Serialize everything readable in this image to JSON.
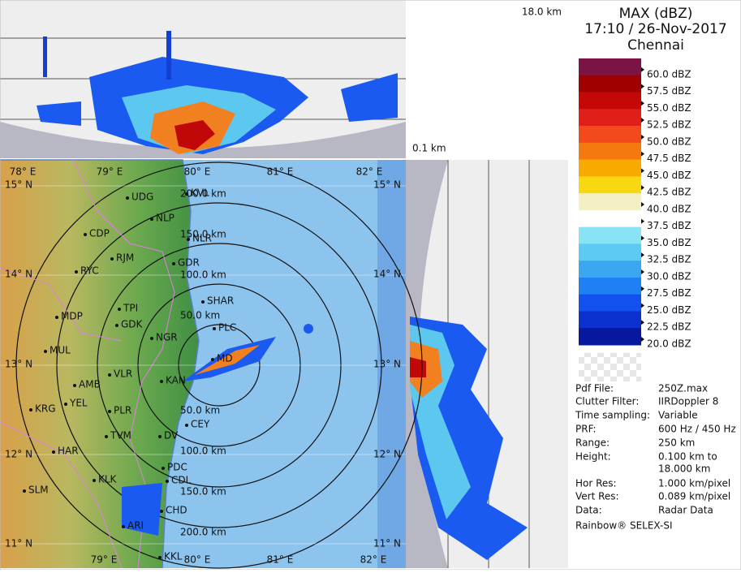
{
  "header": {
    "product": "MAX (dBZ)",
    "datetime": "17:10 / 26-Nov-2017",
    "station": "Chennai"
  },
  "top_height_label": "18.0 km",
  "bottom_height_label": "0.1 km",
  "legend": [
    {
      "label": "60.0 dBZ",
      "color": "#7b1444"
    },
    {
      "label": "57.5 dBZ",
      "color": "#a00000"
    },
    {
      "label": "55.0 dBZ",
      "color": "#c40808"
    },
    {
      "label": "52.5 dBZ",
      "color": "#e02018"
    },
    {
      "label": "50.0 dBZ",
      "color": "#f24a1c"
    },
    {
      "label": "47.5 dBZ",
      "color": "#f47a10"
    },
    {
      "label": "45.0 dBZ",
      "color": "#f8aa00"
    },
    {
      "label": "42.5 dBZ",
      "color": "#f8d810"
    },
    {
      "label": "40.0 dBZ",
      "color": "#f2f0c4"
    },
    {
      "label": "37.5 dBZ",
      "color": "#ffffff"
    },
    {
      "label": "35.0 dBZ",
      "color": "#88e4f4"
    },
    {
      "label": "32.5 dBZ",
      "color": "#5ccaf2"
    },
    {
      "label": "30.0 dBZ",
      "color": "#3aa8f0"
    },
    {
      "label": "27.5 dBZ",
      "color": "#1e80f2"
    },
    {
      "label": "25.0 dBZ",
      "color": "#1250f0"
    },
    {
      "label": "22.5 dBZ",
      "color": "#0c30d0"
    },
    {
      "label": "20.0 dBZ",
      "color": "#08189e"
    }
  ],
  "info": [
    {
      "key": "Pdf File:",
      "value": "250Z.max"
    },
    {
      "key": "Clutter Filter:",
      "value": "IIRDoppler 8"
    },
    {
      "key": "Time sampling:",
      "value": "Variable"
    },
    {
      "key": "PRF:",
      "value": "600 Hz / 450 Hz"
    },
    {
      "key": "Range:",
      "value": "250 km"
    },
    {
      "key": "Height:",
      "value": "0.100 km to"
    },
    {
      "key": "",
      "value": "18.000 km"
    },
    {
      "key": "Hor Res:",
      "value": "1.000 km/pixel"
    },
    {
      "key": "Vert Res:",
      "value": "0.089 km/pixel"
    },
    {
      "key": "Data:",
      "value": "Radar Data"
    }
  ],
  "footer": "Rainbow® SELEX-SI",
  "longitudes_top": [
    "78° E",
    "79° E",
    "80° E",
    "81° E",
    "82° E"
  ],
  "longitudes_bottom": [
    "79° E",
    "80° E",
    "81° E",
    "82° E"
  ],
  "latitudes_left": [
    "15° N",
    "14° N",
    "13° N",
    "12° N",
    "11° N"
  ],
  "latitudes_right": [
    "15° N",
    "14° N",
    "13° N",
    "12° N",
    "11° N"
  ],
  "range_labels": [
    "200.0 km",
    "150.0 km",
    "100.0 km",
    "50.0 km",
    "50.0 km",
    "100.0 km",
    "150.0 km",
    "200.0 km"
  ],
  "cities": [
    "UDG",
    "KVL",
    "NLP",
    "CDP",
    "NLR",
    "RJM",
    "GDR",
    "RYC",
    "SHAR",
    "TPI",
    "MDP",
    "GDK",
    "PLC",
    "NGR",
    "MUL",
    "MD",
    "VLR",
    "AMB",
    "KAN",
    "YEL",
    "KRG",
    "PLR",
    "CEY",
    "TVM",
    "DV",
    "HAR",
    "PDC",
    "CDL",
    "KLK",
    "SLM",
    "CHD",
    "ARI",
    "KKL"
  ]
}
